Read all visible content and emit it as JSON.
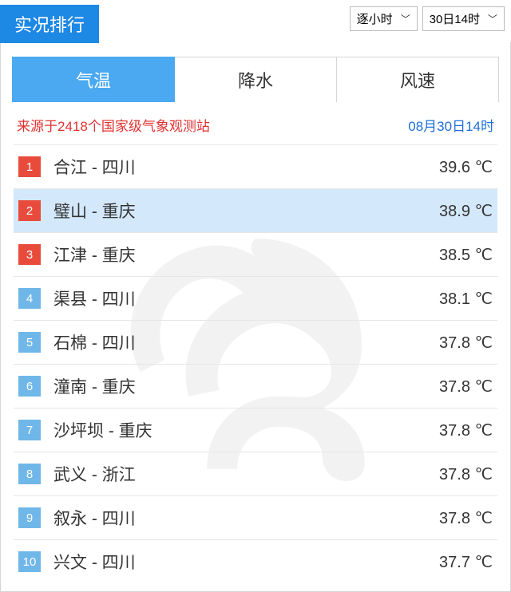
{
  "header": {
    "title": "实况排行",
    "select1": "逐小时",
    "select2": "30日14时"
  },
  "tabs": [
    {
      "label": "气温",
      "active": true
    },
    {
      "label": "降水",
      "active": false
    },
    {
      "label": "风速",
      "active": false
    }
  ],
  "source": {
    "text": "来源于2418个国家级气象观测站",
    "timestamp": "08月30日14时"
  },
  "rows": [
    {
      "rank": "1",
      "city": "合江",
      "province": "四川",
      "value": "39.6 ℃",
      "rank_color": "red",
      "highlight": false
    },
    {
      "rank": "2",
      "city": "璧山",
      "province": "重庆",
      "value": "38.9 ℃",
      "rank_color": "red",
      "highlight": true
    },
    {
      "rank": "3",
      "city": "江津",
      "province": "重庆",
      "value": "38.5 ℃",
      "rank_color": "red",
      "highlight": false
    },
    {
      "rank": "4",
      "city": "渠县",
      "province": "四川",
      "value": "38.1 ℃",
      "rank_color": "blue",
      "highlight": false
    },
    {
      "rank": "5",
      "city": "石棉",
      "province": "四川",
      "value": "37.8 ℃",
      "rank_color": "blue",
      "highlight": false
    },
    {
      "rank": "6",
      "city": "潼南",
      "province": "重庆",
      "value": "37.8 ℃",
      "rank_color": "blue",
      "highlight": false
    },
    {
      "rank": "7",
      "city": "沙坪坝",
      "province": "重庆",
      "value": "37.8 ℃",
      "rank_color": "blue",
      "highlight": false
    },
    {
      "rank": "8",
      "city": "武义",
      "province": "浙江",
      "value": "37.8 ℃",
      "rank_color": "blue",
      "highlight": false
    },
    {
      "rank": "9",
      "city": "叙永",
      "province": "四川",
      "value": "37.8 ℃",
      "rank_color": "blue",
      "highlight": false
    },
    {
      "rank": "10",
      "city": "兴文",
      "province": "四川",
      "value": "37.7 ℃",
      "rank_color": "blue",
      "highlight": false
    }
  ],
  "colors": {
    "primary_blue": "#1e88e5",
    "tab_active": "#4aa9f0",
    "rank_red": "#e84b3c",
    "rank_blue": "#6fb7e8",
    "source_red": "#e03131",
    "timestamp_blue": "#1e6fd9",
    "highlight_bg": "#d3e8fb",
    "border": "#d6d6d6"
  }
}
